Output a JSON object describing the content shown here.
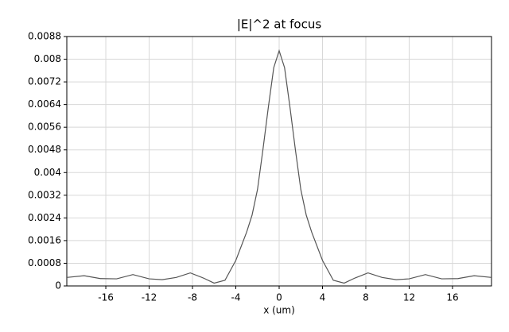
{
  "chart_data": {
    "type": "line",
    "title": "|E|^2 at focus",
    "x_label": "x (um)",
    "x": [
      -19.6,
      -18,
      -16.5,
      -15,
      -13.5,
      -12,
      -10.8,
      -9.5,
      -8.2,
      -7,
      -6,
      -5,
      -4,
      -3,
      -2.5,
      -2,
      -1.5,
      -1,
      -0.5,
      0,
      0.5,
      1,
      1.5,
      2,
      2.5,
      3,
      4,
      5,
      6,
      7,
      8.2,
      9.5,
      10.8,
      12,
      13.5,
      15,
      16.5,
      18,
      19.6
    ],
    "series": [
      {
        "color": "#555555",
        "values": [
          0.0003,
          0.00036,
          0.00026,
          0.00025,
          0.0004,
          0.00025,
          0.00022,
          0.0003,
          0.00046,
          0.00028,
          0.0001,
          0.0002,
          0.0009,
          0.0019,
          0.0025,
          0.0034,
          0.0048,
          0.0063,
          0.0077,
          0.0083,
          0.0077,
          0.0063,
          0.0048,
          0.0034,
          0.0025,
          0.0019,
          0.0009,
          0.0002,
          0.0001,
          0.00028,
          0.00046,
          0.0003,
          0.00022,
          0.00025,
          0.0004,
          0.00025,
          0.00026,
          0.00036,
          0.0003
        ]
      }
    ],
    "xlim": [
      -19.6,
      19.6
    ],
    "ylim": [
      0,
      0.0088
    ],
    "xticks": [
      -16,
      -12,
      -8,
      -4,
      0,
      4,
      8,
      12,
      16
    ],
    "yticks": [
      0,
      0.0008,
      0.0016,
      0.0024,
      0.0032,
      0.004,
      0.0048,
      0.0056,
      0.0064,
      0.0072,
      0.008,
      0.0088
    ],
    "grid": true
  }
}
